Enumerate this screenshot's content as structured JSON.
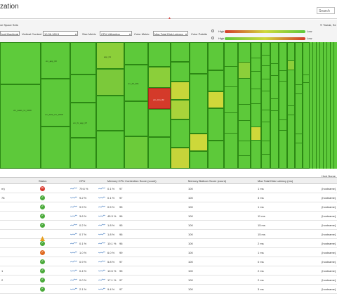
{
  "header": {
    "title": "zation",
    "search_placeholder": "Search",
    "sub_label": "ve Space Sets",
    "right_link": "© Tweak, Se"
  },
  "filters": {
    "object_type_value": "tual Machine",
    "vcenter_label": "Vertical Content",
    "vcenter_value": "10.36.180.5",
    "size_label": "Size Metric",
    "size_value": "CPU Utilization",
    "color_label": "Color Metric",
    "color_value": "Max Total Disk Latency",
    "color_palette_label": "Color Palette",
    "legend_high": "High",
    "legend_low": "Low",
    "colors": {
      "good": "#5dc93a",
      "warn": "#cfd83a",
      "bad": "#d43a2a"
    }
  },
  "treemap": {
    "labels": [
      "vm_cluster_sdk_EXSC_Namo_list_03x7",
      "vm_sales_xx_1040",
      "vm_data_srv_2208",
      "vm_hr_app_07",
      "app_01",
      "vm_db_001",
      "vm_crm_02"
    ]
  },
  "table": {
    "columns": [
      "",
      "Status",
      "CPU",
      "Memory CPU Contention Score (count)",
      "Memory Balloon Score (count)",
      "Max Total Disk Latency (ms)",
      "Host Name"
    ],
    "rows": [
      {
        "name": "m)",
        "status": "error",
        "cpu": "79.6 %",
        "mem_pct": "0.1 %",
        "mem_val": "97",
        "balloon": "100",
        "latency": "1 ms",
        "host": "{hostname}"
      },
      {
        "name": "78",
        "status": "ok",
        "cpu": "9.2 %",
        "mem_pct": "0.1 %",
        "mem_val": "97",
        "balloon": "100",
        "latency": "3 ms",
        "host": "{hostname}"
      },
      {
        "name": "",
        "status": "ok",
        "cpu": "9.9 %",
        "mem_pct": "0.5 %",
        "mem_val": "95",
        "balloon": "100",
        "latency": "1 ms",
        "host": "{hostname}"
      },
      {
        "name": "",
        "status": "ok",
        "cpu": "3.6 %",
        "mem_pct": "45.3 %",
        "mem_val": "96",
        "balloon": "100",
        "latency": "11 ms",
        "host": "{hostname}"
      },
      {
        "name": "",
        "status": "ok",
        "cpu": "0.2 %",
        "mem_pct": "1.8 %",
        "mem_val": "95",
        "balloon": "100",
        "latency": "15 ms",
        "host": "{hostname}"
      },
      {
        "name": "",
        "status": "warn",
        "cpu": "0.7 %",
        "mem_pct": "1.8 %",
        "mem_val": "96",
        "balloon": "100",
        "latency": "15 ms",
        "host": "{hostname}"
      },
      {
        "name": "",
        "status": "ok",
        "cpu": "0.1 %",
        "mem_pct": "10.1 %",
        "mem_val": "96",
        "balloon": "100",
        "latency": "2 ms",
        "host": "{hostname}"
      },
      {
        "name": "",
        "status": "orange",
        "cpu": "1.0 %",
        "mem_pct": "6.0 %",
        "mem_val": "99",
        "balloon": "100",
        "latency": "1 ms",
        "host": "{hostname}"
      },
      {
        "name": "",
        "status": "ok",
        "cpu": "0.9 %",
        "mem_pct": "5.8 %",
        "mem_val": "97",
        "balloon": "100",
        "latency": "0 ms",
        "host": "{hostname}"
      },
      {
        "name": "1",
        "status": "ok",
        "cpu": "0.4 %",
        "mem_pct": "10.5 %",
        "mem_val": "95",
        "balloon": "100",
        "latency": "2 ms",
        "host": "{hostname}"
      },
      {
        "name": "2",
        "status": "ok",
        "cpu": "0.0 %",
        "mem_pct": "17.1 %",
        "mem_val": "97",
        "balloon": "100",
        "latency": "2 ms",
        "host": "{hostname}"
      },
      {
        "name": "",
        "status": "ok",
        "cpu": "2.1 %",
        "mem_pct": "9.4 %",
        "mem_val": "97",
        "balloon": "100",
        "latency": "3 ms",
        "host": "{hostname}"
      }
    ]
  }
}
